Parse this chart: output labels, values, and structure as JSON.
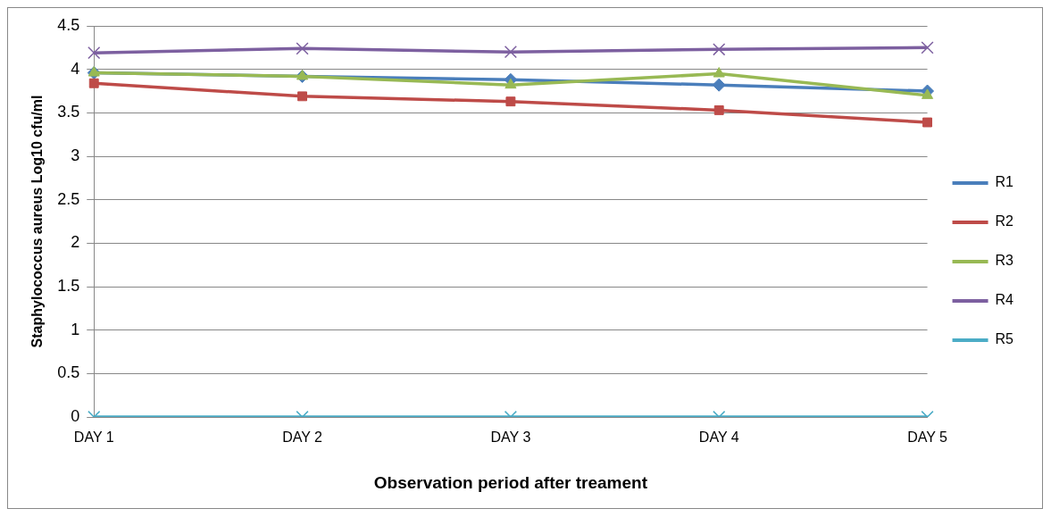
{
  "chart_data": {
    "type": "line",
    "xlabel": "Observation period after treament",
    "ylabel": "Staphylococcus aureus Log10 cfu/ml",
    "categories": [
      "DAY 1",
      "DAY 2",
      "DAY 3",
      "DAY 4",
      "DAY 5"
    ],
    "series": [
      {
        "name": "R1",
        "color": "#4a7ebb",
        "marker": "diamond",
        "values": [
          3.96,
          3.92,
          3.88,
          3.82,
          3.75
        ]
      },
      {
        "name": "R2",
        "color": "#be4b48",
        "marker": "square",
        "values": [
          3.84,
          3.69,
          3.63,
          3.53,
          3.39
        ]
      },
      {
        "name": "R3",
        "color": "#98b954",
        "marker": "triangle",
        "values": [
          3.96,
          3.92,
          3.82,
          3.95,
          3.7
        ]
      },
      {
        "name": "R4",
        "color": "#7d60a0",
        "marker": "cross",
        "values": [
          4.19,
          4.24,
          4.2,
          4.23,
          4.25
        ]
      },
      {
        "name": "R5",
        "color": "#4bacc6",
        "marker": "cross",
        "values": [
          0,
          0,
          0,
          0,
          0
        ]
      }
    ],
    "ylim": [
      0,
      4.5
    ],
    "yticks": [
      0,
      0.5,
      1,
      1.5,
      2,
      2.5,
      3,
      3.5,
      4,
      4.5
    ],
    "grid": "y",
    "legend": "right"
  }
}
